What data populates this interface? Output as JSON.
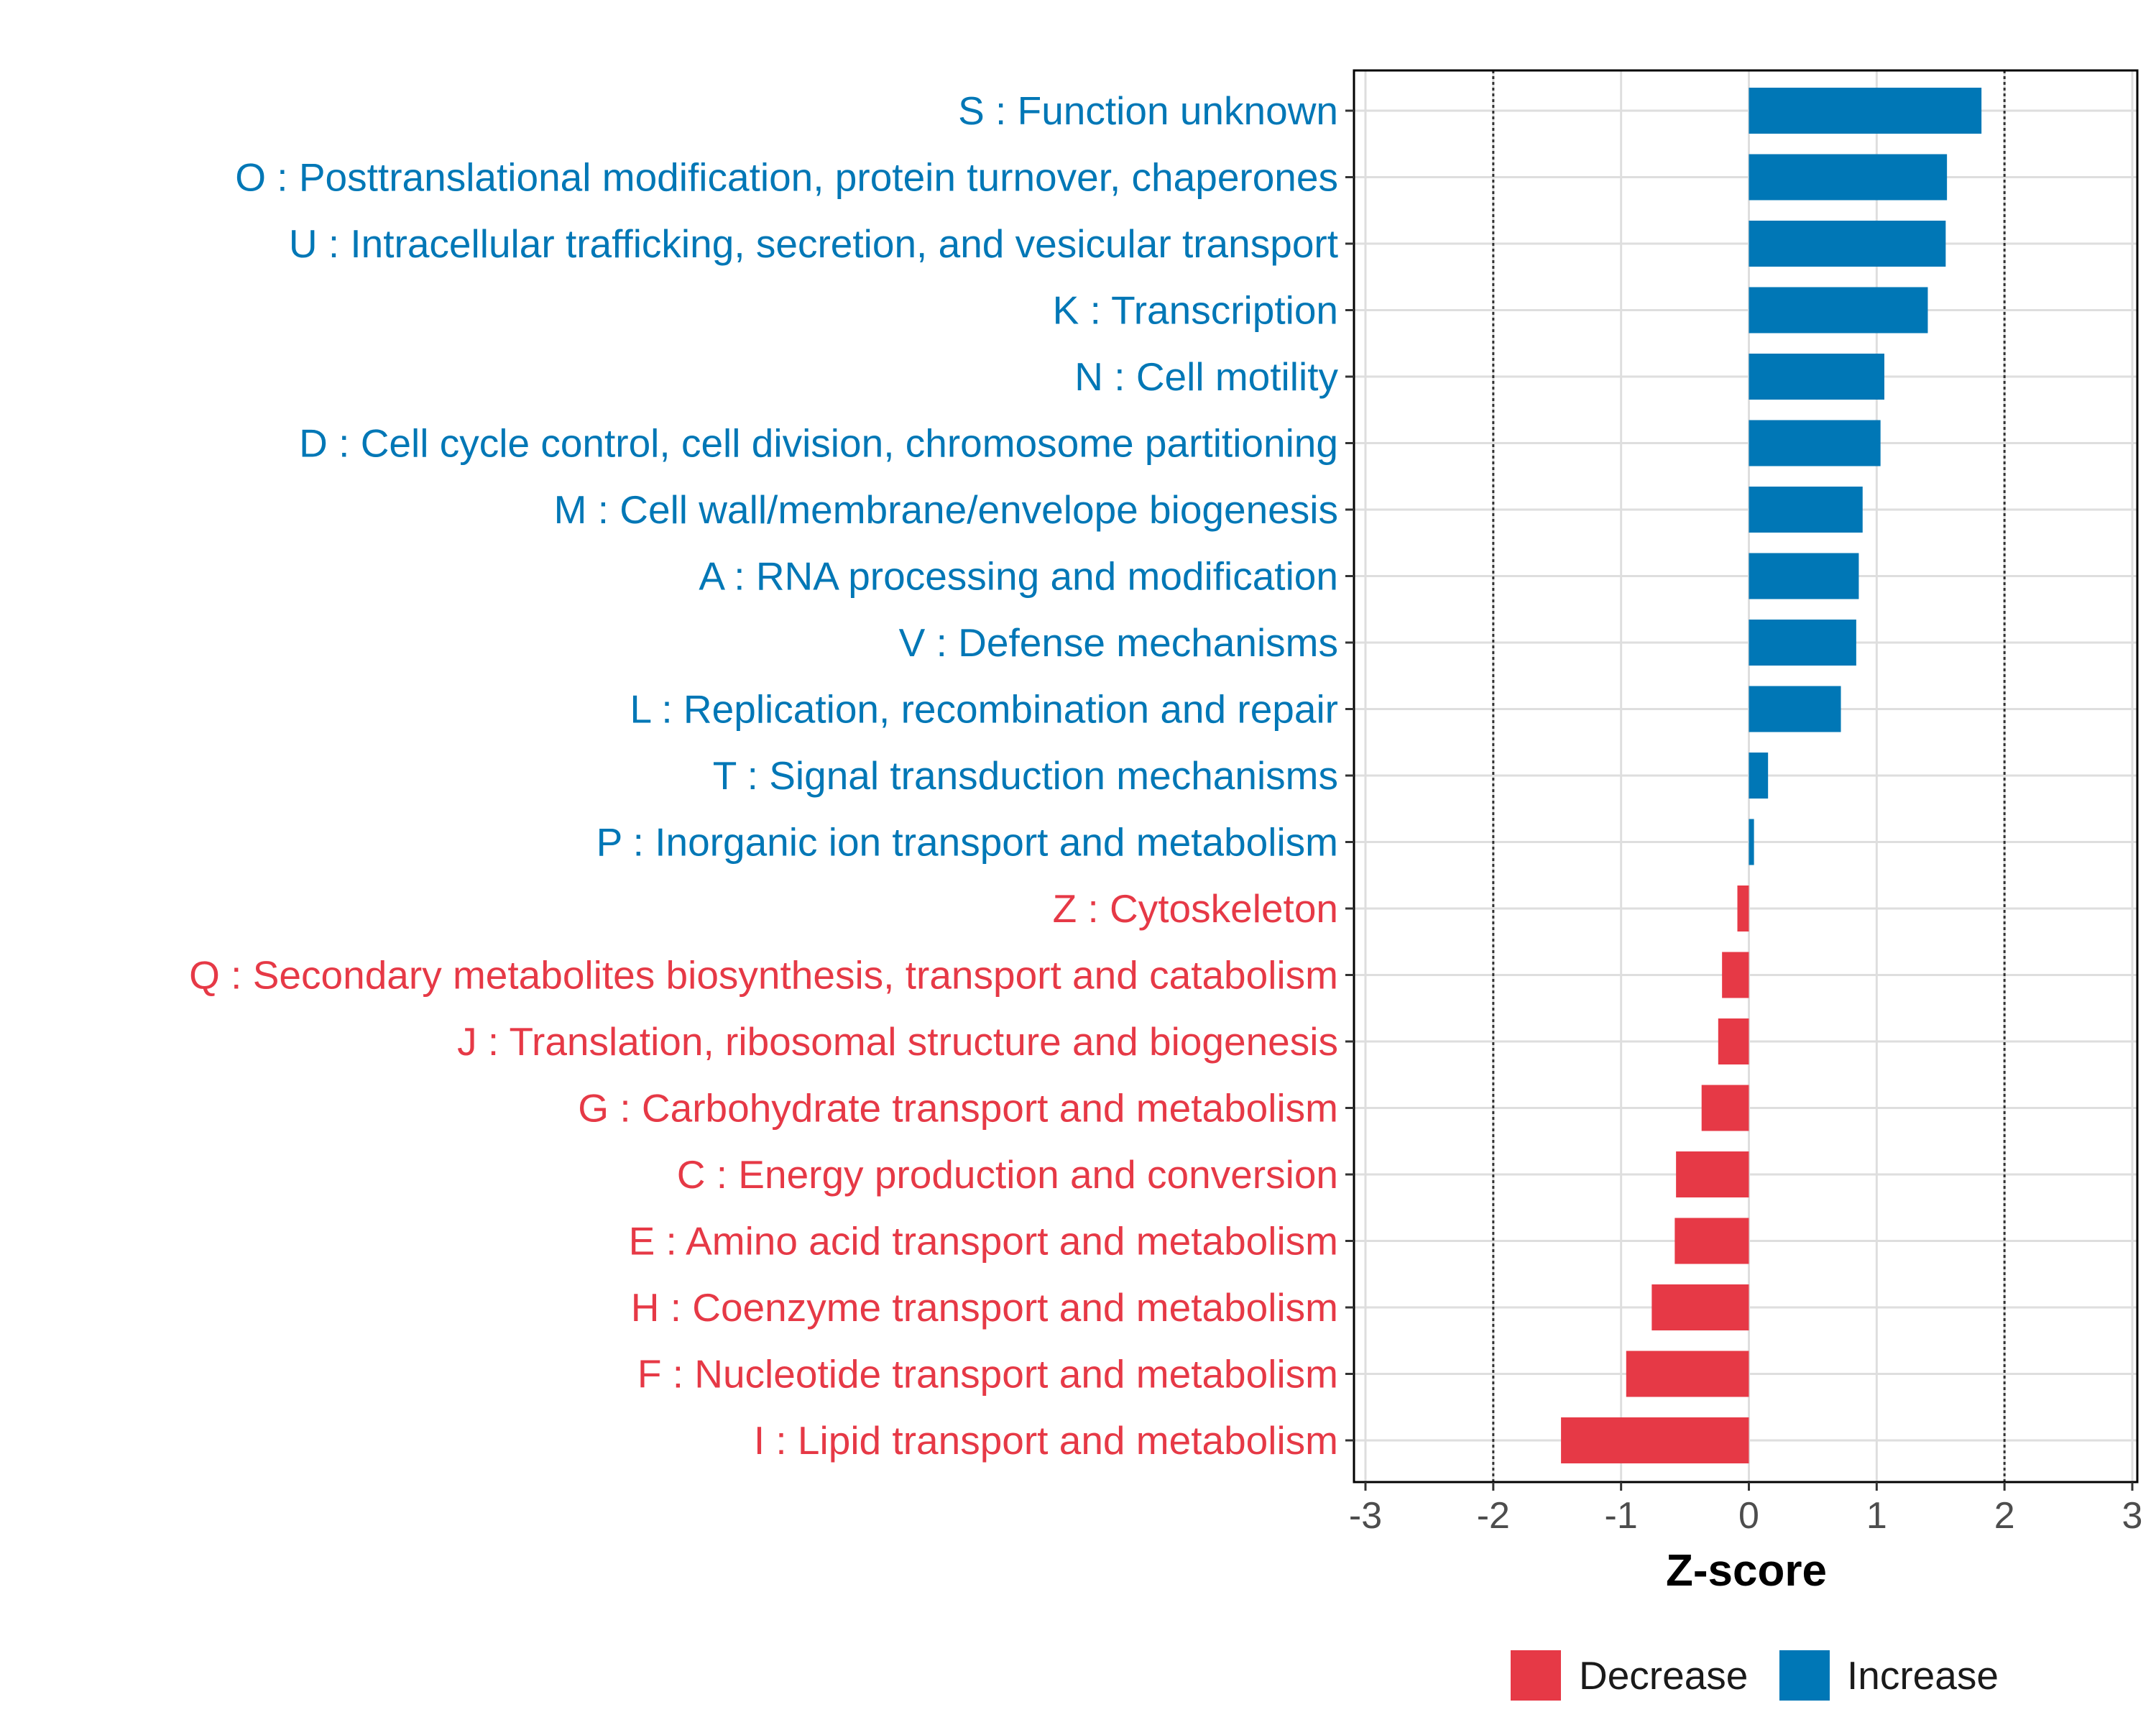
{
  "chart_data": {
    "type": "bar",
    "orientation": "horizontal",
    "xlabel": "Z-score",
    "ylabel": "",
    "xlim": [
      -3,
      3
    ],
    "x_ticks": [
      "-3",
      "-2",
      "-1",
      "0",
      "1",
      "2",
      "3"
    ],
    "reference_lines": [
      -2,
      2
    ],
    "grid": true,
    "legend_position": "bottom",
    "colors": {
      "Decrease": "#E63946",
      "Increase": "#0077B6"
    },
    "legend": [
      {
        "label": "Decrease",
        "color": "#E63946"
      },
      {
        "label": "Increase",
        "color": "#0077B6"
      }
    ],
    "categories": [
      "S : Function unknown",
      "O : Posttranslational modification, protein turnover, chaperones",
      "U : Intracellular trafficking, secretion, and vesicular transport",
      "K : Transcription",
      "N : Cell motility",
      "D : Cell cycle control, cell division, chromosome partitioning",
      "M : Cell wall/membrane/envelope biogenesis",
      "A : RNA processing and modification",
      "V : Defense mechanisms",
      "L : Replication, recombination and repair",
      "T : Signal transduction mechanisms",
      "P : Inorganic ion transport and metabolism",
      "Z : Cytoskeleton",
      "Q : Secondary metabolites biosynthesis, transport and catabolism",
      "J : Translation, ribosomal structure and biogenesis",
      "G : Carbohydrate transport and metabolism",
      "C : Energy production and conversion",
      "E : Amino acid transport and metabolism",
      "H : Coenzyme transport and metabolism",
      "F : Nucleotide transport and metabolism",
      "I : Lipid transport and metabolism"
    ],
    "values": [
      1.82,
      1.55,
      1.54,
      1.4,
      1.06,
      1.03,
      0.89,
      0.86,
      0.84,
      0.72,
      0.15,
      0.04,
      -0.09,
      -0.21,
      -0.24,
      -0.37,
      -0.57,
      -0.58,
      -0.76,
      -0.96,
      -1.47
    ],
    "groups": [
      "Increase",
      "Increase",
      "Increase",
      "Increase",
      "Increase",
      "Increase",
      "Increase",
      "Increase",
      "Increase",
      "Increase",
      "Increase",
      "Increase",
      "Decrease",
      "Decrease",
      "Decrease",
      "Decrease",
      "Decrease",
      "Decrease",
      "Decrease",
      "Decrease",
      "Decrease"
    ]
  }
}
